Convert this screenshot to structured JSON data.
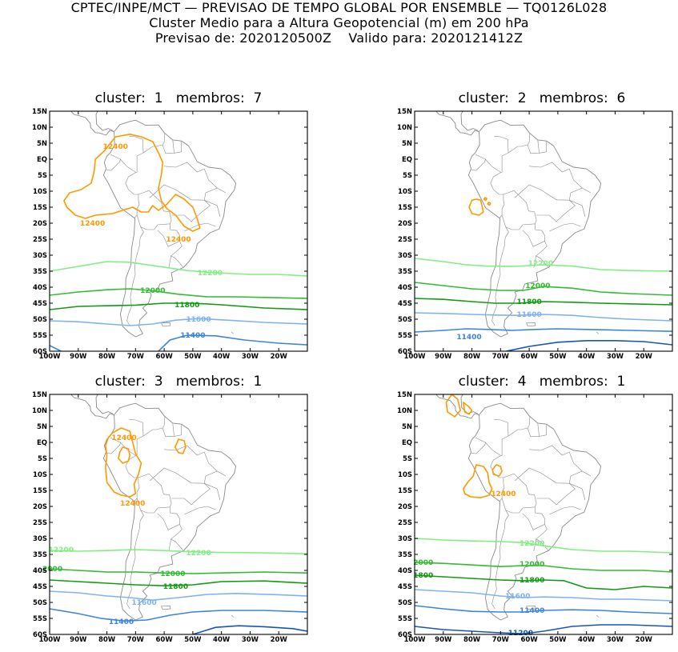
{
  "header": {
    "line1": "CPTEC/INPE/MCT — PREVISAO DE TEMPO GLOBAL POR ENSEMBLE — TQ0126L028",
    "line2": "Cluster Medio para a Altura Geopotencial (m) em 200 hPa",
    "line3": "Previsao de: 2020120500Z    Valido para: 2020121412Z"
  },
  "axes": {
    "lat_labels": [
      "15N",
      "10N",
      "5N",
      "EQ",
      "5S",
      "10S",
      "15S",
      "20S",
      "25S",
      "30S",
      "35S",
      "40S",
      "45S",
      "50S",
      "55S",
      "60S"
    ],
    "lon_labels": [
      "100W",
      "90W",
      "80W",
      "70W",
      "60W",
      "50W",
      "40W",
      "30W",
      "20W"
    ]
  },
  "colors": {
    "12400": "#ff9900",
    "12200": "#80ee80",
    "12000": "#33bb33",
    "11800": "#129a12",
    "11600": "#7fb3f0",
    "11400": "#3d85d8",
    "11200": "#1855b8",
    "coast": "#8a8a8a",
    "frame": "#000000"
  },
  "panels": [
    {
      "title": "cluster:  1   membros:  7",
      "contour_labels": [
        {
          "text": "12400",
          "color_key": "12400",
          "lon": -77,
          "lat": 4
        },
        {
          "text": "12400",
          "color_key": "12400",
          "lon": -85,
          "lat": -20
        },
        {
          "text": "12400",
          "color_key": "12400",
          "lon": -55,
          "lat": -25
        },
        {
          "text": "12200",
          "color_key": "12200",
          "lon": -44,
          "lat": -35.5
        },
        {
          "text": "12000",
          "color_key": "12000",
          "lon": -64,
          "lat": -41
        },
        {
          "text": "11800",
          "color_key": "11800",
          "lon": -52,
          "lat": -45.5
        },
        {
          "text": "11600",
          "color_key": "11600",
          "lon": -48,
          "lat": -50
        },
        {
          "text": "11400",
          "color_key": "11400",
          "lon": -50,
          "lat": -55
        }
      ]
    },
    {
      "title": "cluster:  2   membros:  6",
      "contour_labels": [
        {
          "text": "12200",
          "color_key": "12200",
          "lon": -56,
          "lat": -32.5
        },
        {
          "text": "12000",
          "color_key": "12000",
          "lon": -57,
          "lat": -39.5
        },
        {
          "text": "11800",
          "color_key": "11800",
          "lon": -60,
          "lat": -44.5
        },
        {
          "text": "11600",
          "color_key": "11600",
          "lon": -60,
          "lat": -48.5
        },
        {
          "text": "11400",
          "color_key": "11400",
          "lon": -81,
          "lat": -55.5
        }
      ]
    },
    {
      "title": "cluster:  3   membros:  1",
      "contour_labels": [
        {
          "text": "12400",
          "color_key": "12400",
          "lon": -74,
          "lat": 1.5
        },
        {
          "text": "12400",
          "color_key": "12400",
          "lon": -71,
          "lat": -19
        },
        {
          "text": "12200",
          "color_key": "12200",
          "lon": -96,
          "lat": -33.5
        },
        {
          "text": "12200",
          "color_key": "12200",
          "lon": -48,
          "lat": -34.5
        },
        {
          "text": "2000",
          "color_key": "12000",
          "lon": -99,
          "lat": -39.5
        },
        {
          "text": "12000",
          "color_key": "12000",
          "lon": -57,
          "lat": -41
        },
        {
          "text": "11800",
          "color_key": "11800",
          "lon": -56,
          "lat": -45
        },
        {
          "text": "11600",
          "color_key": "11600",
          "lon": -67,
          "lat": -50
        },
        {
          "text": "11400",
          "color_key": "11400",
          "lon": -75,
          "lat": -56
        }
      ]
    },
    {
      "title": "cluster:  4   membros:  1",
      "contour_labels": [
        {
          "text": "12400",
          "color_key": "12400",
          "lon": -69,
          "lat": -16
        },
        {
          "text": "12200",
          "color_key": "12200",
          "lon": -59,
          "lat": -31.5
        },
        {
          "text": "2000",
          "color_key": "12000",
          "lon": -97,
          "lat": -37.5
        },
        {
          "text": "12000",
          "color_key": "12000",
          "lon": -59,
          "lat": -38
        },
        {
          "text": "1800",
          "color_key": "11800",
          "lon": -97,
          "lat": -41.5
        },
        {
          "text": "11800",
          "color_key": "11800",
          "lon": -59,
          "lat": -43
        },
        {
          "text": "11600",
          "color_key": "11600",
          "lon": -64,
          "lat": -48
        },
        {
          "text": "11400",
          "color_key": "11400",
          "lon": -59,
          "lat": -52.5
        },
        {
          "text": "11200",
          "color_key": "11200",
          "lon": -63,
          "lat": -59.5
        }
      ]
    }
  ]
}
